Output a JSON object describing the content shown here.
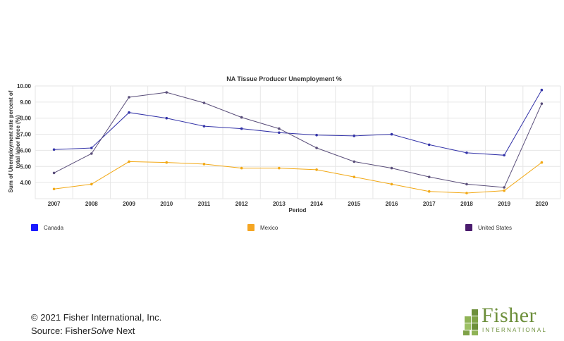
{
  "chart_data": {
    "type": "line",
    "title": "NA Tissue Producer Unemployment %",
    "xlabel": "Period",
    "ylabel_lines": [
      "Sum of Unemployment rate percent of",
      "total labor force (%)"
    ],
    "categories": [
      "2007",
      "2008",
      "2009",
      "2010",
      "2011",
      "2012",
      "2013",
      "2014",
      "2015",
      "2016",
      "2017",
      "2018",
      "2019",
      "2020"
    ],
    "ylim": [
      3.0,
      10.0
    ],
    "yticks": [
      "4.00",
      "5.00",
      "6.00",
      "7.00",
      "8.00",
      "9.00",
      "10.00"
    ],
    "grid": true,
    "legend_position": "bottom",
    "series": [
      {
        "name": "Canada",
        "color": "#3333a8",
        "legend_color": "#1a1aff",
        "values": [
          6.05,
          6.15,
          8.35,
          8.0,
          7.5,
          7.35,
          7.1,
          6.95,
          6.9,
          7.0,
          6.35,
          5.85,
          5.7,
          9.75
        ]
      },
      {
        "name": "Mexico",
        "color": "#f2a814",
        "legend_color": "#f5a623",
        "values": [
          3.6,
          3.9,
          5.3,
          5.25,
          5.15,
          4.9,
          4.9,
          4.8,
          4.35,
          3.9,
          3.45,
          3.35,
          3.5,
          5.25
        ]
      },
      {
        "name": "United States",
        "color": "#5a4e7a",
        "legend_color": "#4b1c6e",
        "values": [
          4.6,
          5.8,
          9.3,
          9.6,
          8.95,
          8.05,
          7.35,
          6.15,
          5.3,
          4.9,
          4.35,
          3.9,
          3.7,
          8.9
        ]
      }
    ]
  },
  "footer": {
    "copyright": "© 2021 Fisher International, Inc.",
    "source_prefix": "Source: Fisher",
    "source_italic": "Solve",
    "source_suffix": " Next"
  },
  "logo": {
    "name": "Fisher",
    "subtitle": "INTERNATIONAL",
    "color": "#6d8f3b"
  }
}
